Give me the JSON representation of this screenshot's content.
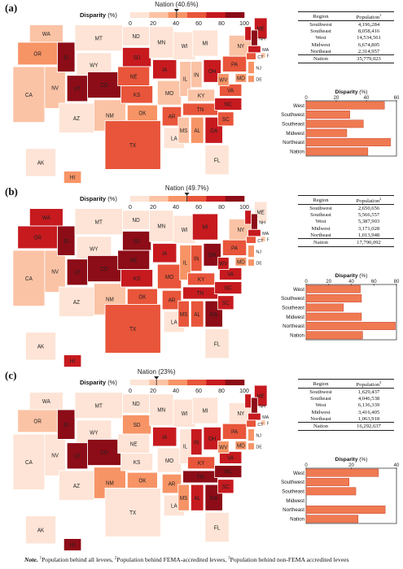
{
  "colors": {
    "scale": [
      "#fde4d6",
      "#fbc3a5",
      "#f79466",
      "#e8553a",
      "#c61a1f",
      "#8c0c17"
    ],
    "bar_fill": "#ef7a52",
    "bar_border": "#c9432b",
    "nation_line": "#222222",
    "state_border": "#ffffff"
  },
  "legend_title": "Disparity",
  "legend_unit": "(%)",
  "legend_ticks": [
    "0",
    "20",
    "40",
    "60",
    "80",
    "100"
  ],
  "table_headers": [
    "Region",
    "Population"
  ],
  "bar_title": "Disparity",
  "bar_unit": "(%)",
  "note": {
    "prefix": "Note.",
    "items": [
      {
        "sup": "1",
        "text": "Population behind all levees,"
      },
      {
        "sup": "2",
        "text": "Population behind FEMA-accredited levees,"
      },
      {
        "sup": "3",
        "text": "Population behind non-FEMA accredited levees"
      }
    ]
  },
  "chart_data": [
    {
      "type": "choropleth",
      "panel_label": "(a)",
      "nation_label": "Nation (40.6%)",
      "nation_value": 40.6,
      "scale_range": [
        0,
        100
      ],
      "table": {
        "sup": "1",
        "rows": [
          {
            "region": "Southwest",
            "population": "4,196,284"
          },
          {
            "region": "Southeast",
            "population": "8,058,416"
          },
          {
            "region": "West",
            "population": "14,534,561"
          },
          {
            "region": "Midwest",
            "population": "6,674,805"
          },
          {
            "region": "Northeast",
            "population": "2,314,957"
          }
        ],
        "total": {
          "region": "Nation",
          "population": "35,779,023"
        }
      },
      "bar": {
        "type": "bar",
        "orientation": "horizontal",
        "categories": [
          "West",
          "Southwest",
          "Southeast",
          "Midwest",
          "Northeast",
          "Nation"
        ],
        "values": [
          52,
          29,
          38,
          27,
          56,
          41
        ],
        "xlim": [
          0,
          60
        ],
        "ticks": [
          "0",
          "20",
          "40",
          "60"
        ]
      },
      "states": {
        "WA": 1,
        "OR": 2,
        "CA": 1,
        "NV": 1,
        "ID": 5,
        "MT": 0,
        "WY": 0,
        "UT": 5,
        "CO": 5,
        "AZ": 0,
        "NM": 1,
        "ND": 0,
        "SD": 4,
        "NE": 3,
        "KS": 3,
        "OK": 2,
        "TX": 3,
        "MN": 0,
        "IA": 4,
        "MO": 1,
        "AR": 3,
        "LA": 0,
        "WI": 0,
        "IL": 1,
        "MI": 0,
        "IN": 1,
        "OH": 4,
        "KY": 1,
        "TN": 3,
        "MS": 1,
        "AL": 2,
        "GA": 4,
        "FL": 0,
        "SC": 3,
        "NC": 4,
        "VA": 3,
        "WV": 2,
        "PA": 3,
        "NY": 1,
        "ME": 4,
        "VT": 4,
        "NH": 5,
        "MA": 4,
        "RI": 1,
        "CT": 3,
        "NJ": 2,
        "DE": 2,
        "MD": 2,
        "AK": 0,
        "HI": 2
      }
    },
    {
      "type": "choropleth",
      "panel_label": "(b)",
      "nation_label": "Nation (49.7%)",
      "nation_value": 49.7,
      "scale_range": [
        0,
        100
      ],
      "table": {
        "sup": "2",
        "rows": [
          {
            "region": "Southwest",
            "population": "2,650,656"
          },
          {
            "region": "Southeast",
            "population": "5,566,557"
          },
          {
            "region": "West",
            "population": "5,387,903"
          },
          {
            "region": "Midwest",
            "population": "3,171,028"
          },
          {
            "region": "Northeast",
            "population": "1,013,948"
          }
        ],
        "total": {
          "region": "Nation",
          "population": "17,790,092"
        }
      },
      "bar": {
        "type": "bar",
        "orientation": "horizontal",
        "categories": [
          "West",
          "Southwest",
          "Southeast",
          "Midwest",
          "Northeast",
          "Nation"
        ],
        "values": [
          48,
          49,
          33,
          49,
          79,
          50
        ],
        "xlim": [
          0,
          80
        ],
        "ticks": [
          "0",
          "20",
          "40",
          "60",
          "80"
        ]
      },
      "states": {
        "WA": 4,
        "OR": 4,
        "CA": 1,
        "NV": 1,
        "ID": 5,
        "MT": 0,
        "WY": 0,
        "UT": 5,
        "CO": 5,
        "AZ": 0,
        "NM": 1,
        "ND": 0,
        "SD": 5,
        "NE": 5,
        "KS": 4,
        "OK": 3,
        "TX": 3,
        "MN": 0,
        "IA": 4,
        "MO": 3,
        "AR": 3,
        "LA": 0,
        "WI": 0,
        "IL": 2,
        "MI": 4,
        "IN": 3,
        "OH": 5,
        "KY": 3,
        "TN": 4,
        "MS": 3,
        "AL": 3,
        "GA": 5,
        "FL": 0,
        "SC": 4,
        "NC": 4,
        "VA": 4,
        "WV": 4,
        "PA": 3,
        "NY": 1,
        "ME": 0,
        "VT": 4,
        "NH": 5,
        "MA": 4,
        "RI": 1,
        "CT": 3,
        "NJ": 2,
        "DE": 2,
        "MD": 2,
        "AK": 0,
        "HI": 4
      }
    },
    {
      "type": "choropleth",
      "panel_label": "(c)",
      "nation_label": "Nation (23%)",
      "nation_value": 23,
      "scale_range": [
        0,
        100
      ],
      "table": {
        "sup": "3",
        "rows": [
          {
            "region": "Southwest",
            "population": "1,629,437"
          },
          {
            "region": "Southeast",
            "population": "4,046,538"
          },
          {
            "region": "West",
            "population": "6,136,339"
          },
          {
            "region": "Midwest",
            "population": "3,416,405"
          },
          {
            "region": "Northeast",
            "population": "1,063,918"
          }
        ],
        "total": {
          "region": "Nation",
          "population": "16,292,637"
        }
      },
      "bar": {
        "type": "bar",
        "orientation": "horizontal",
        "categories": [
          "West",
          "Southwest",
          "Southeast",
          "Midwest",
          "Northeast",
          "Nation"
        ],
        "values": [
          32,
          19,
          22,
          0,
          35,
          23
        ],
        "xlim": [
          0,
          40
        ],
        "ticks": [
          "0",
          "20",
          "40"
        ]
      },
      "states": {
        "WA": 0,
        "OR": 1,
        "CA": 0,
        "NV": 0,
        "ID": 5,
        "MT": 0,
        "WY": 0,
        "UT": 5,
        "CO": 5,
        "AZ": 0,
        "NM": 2,
        "ND": 0,
        "SD": 2,
        "NE": 0,
        "KS": 0,
        "OK": 2,
        "TX": 0,
        "MN": 0,
        "IA": 4,
        "MO": 0,
        "AR": 2,
        "LA": 0,
        "WI": 0,
        "IL": 0,
        "MI": 0,
        "IN": 4,
        "OH": 4,
        "KY": 3,
        "TN": 5,
        "MS": 2,
        "AL": 4,
        "GA": 5,
        "FL": 0,
        "SC": 4,
        "NC": 5,
        "VA": 4,
        "WV": 2,
        "PA": 3,
        "NY": 0,
        "ME": 4,
        "VT": 4,
        "NH": 5,
        "MA": 4,
        "RI": 1,
        "CT": 3,
        "NJ": 2,
        "DE": 2,
        "MD": 2,
        "AK": 0,
        "HI": 5
      }
    }
  ]
}
